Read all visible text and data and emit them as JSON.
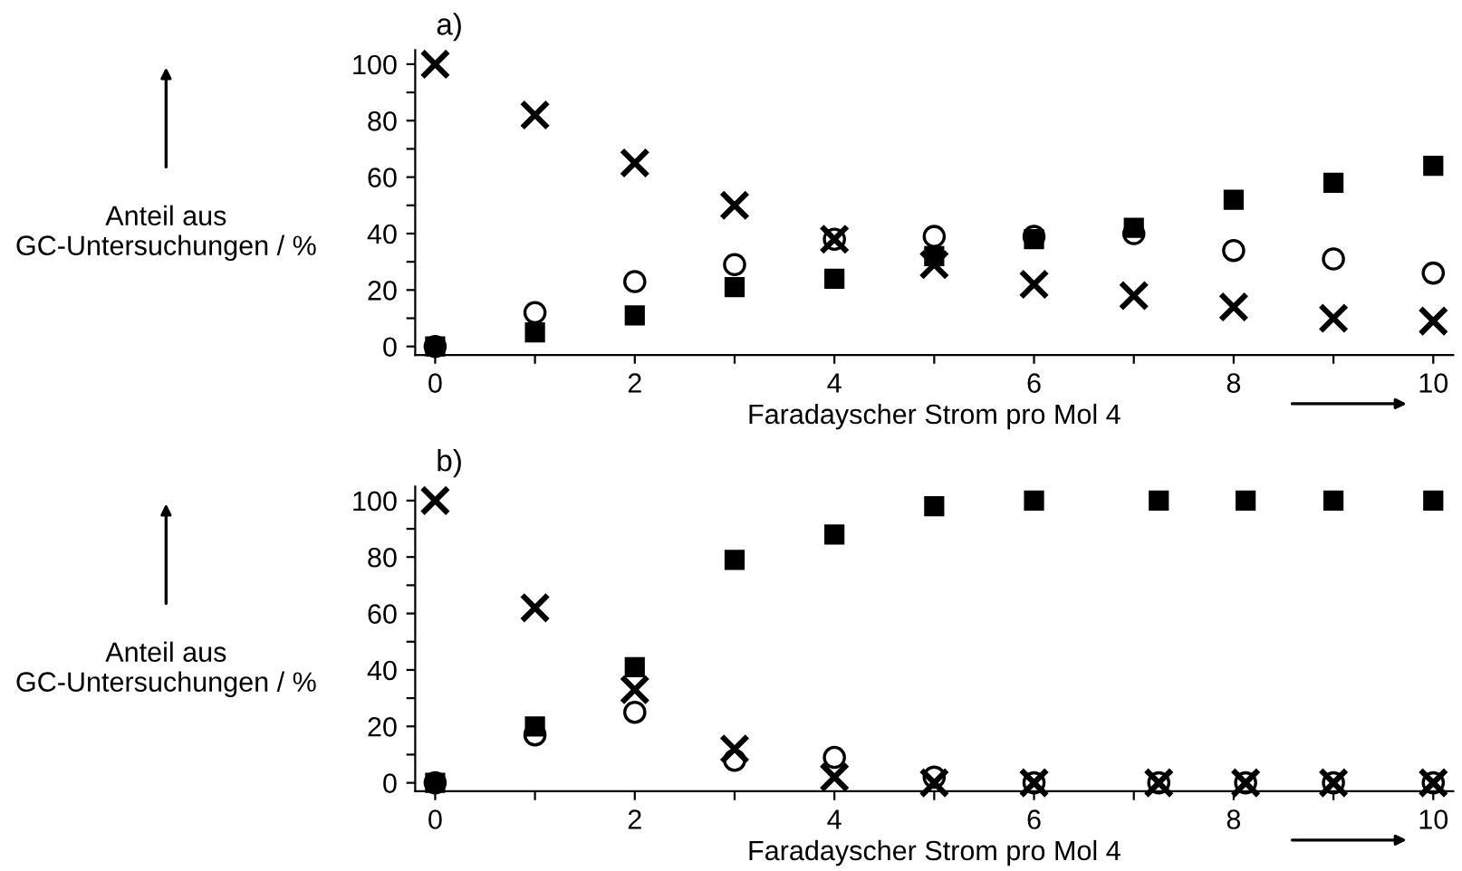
{
  "chart_data": [
    {
      "type": "scatter",
      "title": "a)",
      "xlabel": "Faradayscher Strom pro Mol 4",
      "ylabel": "Anteil aus\nGC-Untersuchungen / %",
      "x": [
        0,
        1,
        2,
        3,
        4,
        5,
        6,
        7,
        8,
        9,
        10
      ],
      "series": [
        {
          "color": "#000000",
          "marker": "cross",
          "values": [
            100,
            82,
            65,
            50,
            38,
            29,
            22,
            18,
            14,
            10,
            9
          ]
        },
        {
          "color": "#000000",
          "marker": "circle",
          "values": [
            0,
            12,
            23,
            29,
            38,
            39,
            39,
            40,
            34,
            31,
            26
          ]
        },
        {
          "color": "#000000",
          "marker": "square",
          "values": [
            0,
            5,
            11,
            21,
            24,
            32,
            38,
            42,
            52,
            58,
            64
          ]
        }
      ],
      "xlim": [
        -0.2,
        10.2
      ],
      "ylim": [
        -3,
        105
      ],
      "xticks": [
        0,
        {
          "value": 1,
          "label": null
        },
        2,
        {
          "value": 3,
          "label": null
        },
        4,
        {
          "value": 5,
          "label": null
        },
        6,
        {
          "value": 7,
          "label": null
        },
        8,
        {
          "value": 9,
          "label": null
        },
        10
      ],
      "yticks": [
        0,
        {
          "value": 10,
          "label": null
        },
        20,
        {
          "value": 30,
          "label": null
        },
        40,
        {
          "value": 50,
          "label": null
        },
        60,
        {
          "value": 70,
          "label": null
        },
        80,
        {
          "value": 90,
          "label": null
        },
        100
      ],
      "grid": false,
      "legend": false
    },
    {
      "type": "scatter",
      "title": "b)",
      "xlabel": "Faradayscher Strom pro Mol 4",
      "ylabel": "Anteil aus\nGC-Untersuchungen / %",
      "x": [
        0,
        1,
        2,
        3,
        4,
        5,
        6,
        7.25,
        8.12,
        9,
        10
      ],
      "series": [
        {
          "color": "#000000",
          "marker": "cross",
          "values": [
            100,
            62,
            33,
            12,
            2,
            0,
            0,
            0,
            0,
            0,
            0
          ]
        },
        {
          "color": "#000000",
          "marker": "circle",
          "values": [
            0,
            17,
            25,
            8,
            9,
            2,
            0,
            0,
            0,
            0,
            0
          ]
        },
        {
          "color": "#000000",
          "marker": "square",
          "values": [
            0,
            20,
            41,
            79,
            88,
            98,
            100,
            100,
            100,
            100,
            100
          ]
        }
      ],
      "xlim": [
        -0.2,
        10.2
      ],
      "ylim": [
        -3,
        105
      ],
      "xticks": [
        0,
        {
          "value": 1,
          "label": null
        },
        2,
        {
          "value": 3,
          "label": null
        },
        4,
        {
          "value": 5,
          "label": null
        },
        6,
        {
          "value": 7,
          "label": null
        },
        8,
        {
          "value": 9,
          "label": null
        },
        10
      ],
      "yticks": [
        0,
        {
          "value": 10,
          "label": null
        },
        20,
        {
          "value": 30,
          "label": null
        },
        40,
        {
          "value": 50,
          "label": null
        },
        60,
        {
          "value": 70,
          "label": null
        },
        80,
        {
          "value": 90,
          "label": null
        },
        100
      ],
      "grid": false,
      "legend": false
    }
  ]
}
